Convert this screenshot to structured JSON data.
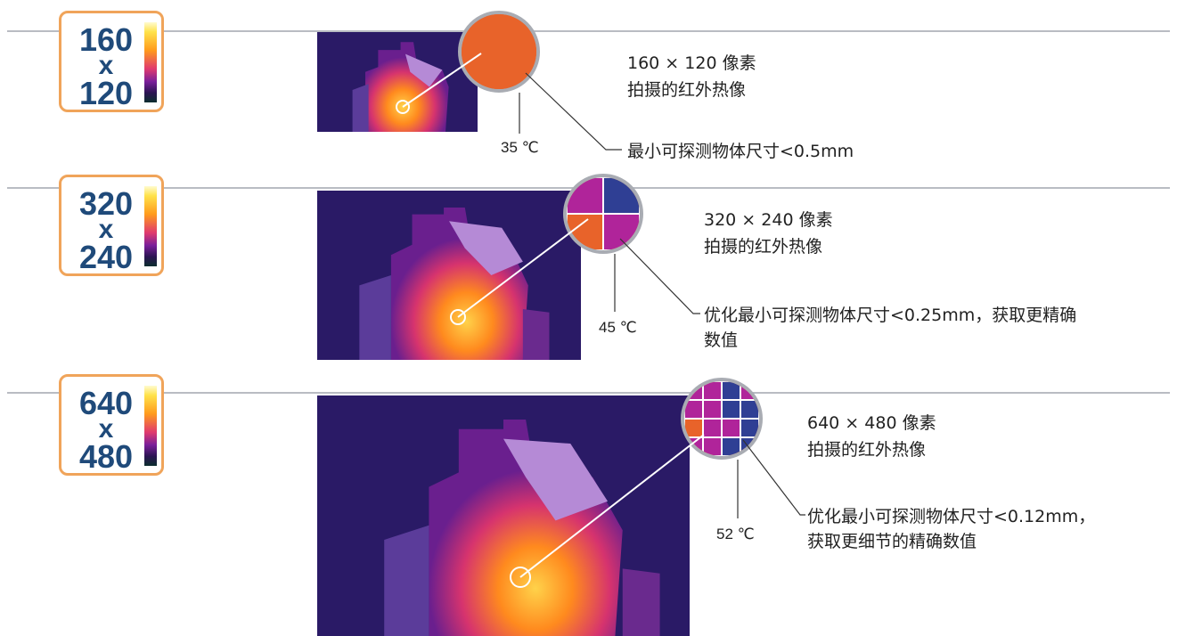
{
  "colors": {
    "badge_border": "#f0a45a",
    "badge_text": "#1f4a7a",
    "hot": "#e8632a",
    "magenta": "#b0249a",
    "cool": "#2f3f94",
    "line": "#b9bcc3"
  },
  "rows": [
    {
      "res_w": "160",
      "res_x": "x",
      "res_h": "120",
      "temperature": "35 ℃",
      "pixels": "160 × 120 像素",
      "caption": "拍摄的红外热像",
      "note_line1": "最小可探测物体尺寸<0.5mm",
      "note_line2": "",
      "zoom_grid": 1,
      "zoom_cells": [
        "hot"
      ]
    },
    {
      "res_w": "320",
      "res_x": "x",
      "res_h": "240",
      "temperature": "45 ℃",
      "pixels": "320 × 240 像素",
      "caption": "拍摄的红外热像",
      "note_line1": "优化最小可探测物体尺寸<0.25mm，获取更精确",
      "note_line2": "数值",
      "zoom_grid": 2,
      "zoom_cells": [
        "magenta",
        "cool",
        "hot",
        "magenta"
      ]
    },
    {
      "res_w": "640",
      "res_x": "x",
      "res_h": "480",
      "temperature": "52 ℃",
      "pixels": "640 × 480 像素",
      "caption": "拍摄的红外热像",
      "note_line1": "优化最小可探测物体尺寸<0.12mm，",
      "note_line2": "获取更细节的精确数值",
      "zoom_grid": 4,
      "zoom_cells": [
        "magenta",
        "magenta",
        "cool",
        "magenta",
        "magenta",
        "magenta",
        "cool",
        "cool",
        "hot",
        "magenta",
        "magenta",
        "cool",
        "magenta",
        "magenta",
        "cool",
        "cool"
      ]
    }
  ]
}
